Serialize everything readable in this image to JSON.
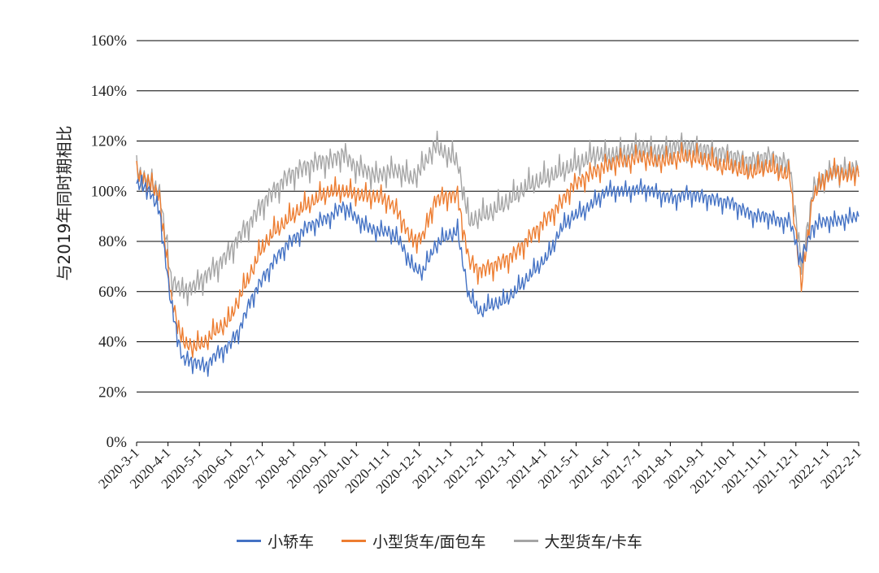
{
  "chart_data": {
    "type": "line",
    "ylabel": "与2019年同时期相比",
    "ylim": [
      0,
      160
    ],
    "yticks": [
      "0%",
      "20%",
      "40%",
      "60%",
      "80%",
      "100%",
      "120%",
      "140%",
      "160%"
    ],
    "xticks": [
      "2020-3-1",
      "2020-4-1",
      "2020-5-1",
      "2020-6-1",
      "2020-7-1",
      "2020-8-1",
      "2020-9-1",
      "2020-10-1",
      "2020-11-1",
      "2020-12-1",
      "2021-1-1",
      "2021-2-1",
      "2021-3-1",
      "2021-4-1",
      "2021-5-1",
      "2021-6-1",
      "2021-7-1",
      "2021-8-1",
      "2021-9-1",
      "2021-10-1",
      "2021-11-1",
      "2021-12-1",
      "2022-1-1",
      "2022-2-1"
    ],
    "grid": true,
    "legend_position": "bottom",
    "series": [
      {
        "name": "小轿车",
        "color": "#4472C4",
        "values": [
          103,
          101,
          92,
          55,
          33,
          32,
          30,
          35,
          38,
          45,
          57,
          65,
          72,
          78,
          82,
          86,
          88,
          90,
          94,
          90,
          86,
          84,
          84,
          80,
          70,
          68,
          78,
          82,
          84,
          58,
          52,
          55,
          56,
          60,
          65,
          70,
          75,
          85,
          90,
          92,
          96,
          100,
          100,
          100,
          101,
          100,
          98,
          97,
          99,
          98,
          97,
          96,
          95,
          92,
          90,
          90,
          88,
          88,
          72,
          86,
          88,
          88,
          89,
          90
        ]
      },
      {
        "name": "小型货车/面包车",
        "color": "#ED7D31",
        "values": [
          107,
          104,
          98,
          58,
          40,
          38,
          40,
          45,
          48,
          58,
          68,
          78,
          84,
          88,
          92,
          95,
          98,
          100,
          100,
          99,
          98,
          98,
          96,
          90,
          80,
          82,
          96,
          98,
          98,
          72,
          68,
          70,
          72,
          75,
          80,
          85,
          90,
          95,
          102,
          105,
          108,
          110,
          112,
          112,
          114,
          112,
          112,
          113,
          114,
          113,
          112,
          110,
          110,
          108,
          108,
          110,
          108,
          106,
          62,
          98,
          105,
          108,
          106,
          108
        ]
      },
      {
        "name": "大型货车/卡车",
        "color": "#A5A5A5",
        "values": [
          108,
          104,
          100,
          65,
          60,
          62,
          66,
          70,
          75,
          82,
          88,
          95,
          100,
          105,
          108,
          110,
          112,
          112,
          115,
          110,
          108,
          106,
          108,
          108,
          105,
          110,
          118,
          115,
          112,
          88,
          90,
          92,
          95,
          98,
          102,
          104,
          106,
          108,
          110,
          112,
          115,
          114,
          115,
          116,
          118,
          116,
          116,
          118,
          118,
          117,
          116,
          115,
          114,
          112,
          112,
          114,
          112,
          110,
          70,
          100,
          106,
          108,
          108,
          110
        ]
      }
    ]
  }
}
